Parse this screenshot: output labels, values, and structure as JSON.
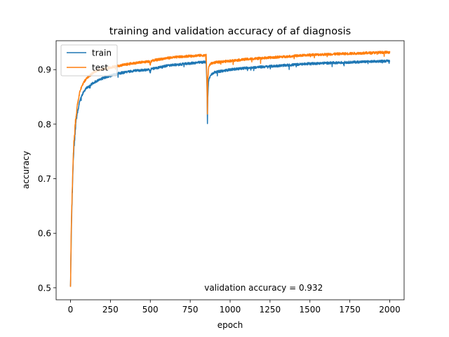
{
  "chart_data": {
    "type": "line",
    "title": "training and validation accuracy of af diagnosis",
    "xlabel": "epoch",
    "ylabel": "accuracy",
    "xlim": [
      -90,
      2090
    ],
    "ylim": [
      0.478,
      0.953
    ],
    "xticks": [
      0,
      250,
      500,
      750,
      1000,
      1250,
      1500,
      1750,
      2000
    ],
    "yticks": [
      0.5,
      0.6,
      0.7,
      0.8,
      0.9
    ],
    "grid": false,
    "legend": "top-left",
    "annotation": {
      "text": "validation accuracy = 0.932",
      "x": 1210,
      "y": 0.5
    },
    "series": [
      {
        "name": "train",
        "color": "#1f77b4",
        "x": [
          0,
          5,
          10,
          15,
          20,
          30,
          40,
          60,
          80,
          100,
          150,
          200,
          250,
          300,
          400,
          495,
          500,
          505,
          600,
          700,
          800,
          850,
          855,
          858,
          860,
          865,
          870,
          880,
          900,
          1000,
          1100,
          1200,
          1300,
          1400,
          1500,
          1600,
          1700,
          1800,
          1900,
          2000
        ],
        "values": [
          0.5,
          0.6,
          0.66,
          0.71,
          0.75,
          0.79,
          0.815,
          0.845,
          0.858,
          0.866,
          0.877,
          0.884,
          0.889,
          0.893,
          0.898,
          0.9,
          0.893,
          0.901,
          0.907,
          0.91,
          0.913,
          0.914,
          0.87,
          0.8,
          0.85,
          0.878,
          0.885,
          0.89,
          0.895,
          0.9,
          0.903,
          0.905,
          0.907,
          0.909,
          0.911,
          0.912,
          0.913,
          0.914,
          0.915,
          0.916
        ]
      },
      {
        "name": "test",
        "color": "#ff7f0e",
        "x": [
          0,
          5,
          10,
          15,
          20,
          30,
          40,
          60,
          80,
          100,
          150,
          200,
          250,
          300,
          400,
          495,
          500,
          505,
          600,
          700,
          800,
          850,
          855,
          858,
          860,
          865,
          870,
          880,
          900,
          1000,
          1100,
          1200,
          1300,
          1400,
          1500,
          1600,
          1700,
          1800,
          1900,
          2000
        ],
        "values": [
          0.5,
          0.61,
          0.67,
          0.72,
          0.76,
          0.8,
          0.83,
          0.862,
          0.875,
          0.884,
          0.896,
          0.901,
          0.904,
          0.907,
          0.912,
          0.915,
          0.908,
          0.916,
          0.921,
          0.924,
          0.926,
          0.926,
          0.88,
          0.82,
          0.88,
          0.903,
          0.908,
          0.911,
          0.913,
          0.916,
          0.919,
          0.921,
          0.923,
          0.925,
          0.927,
          0.928,
          0.929,
          0.93,
          0.931,
          0.932
        ]
      }
    ]
  }
}
